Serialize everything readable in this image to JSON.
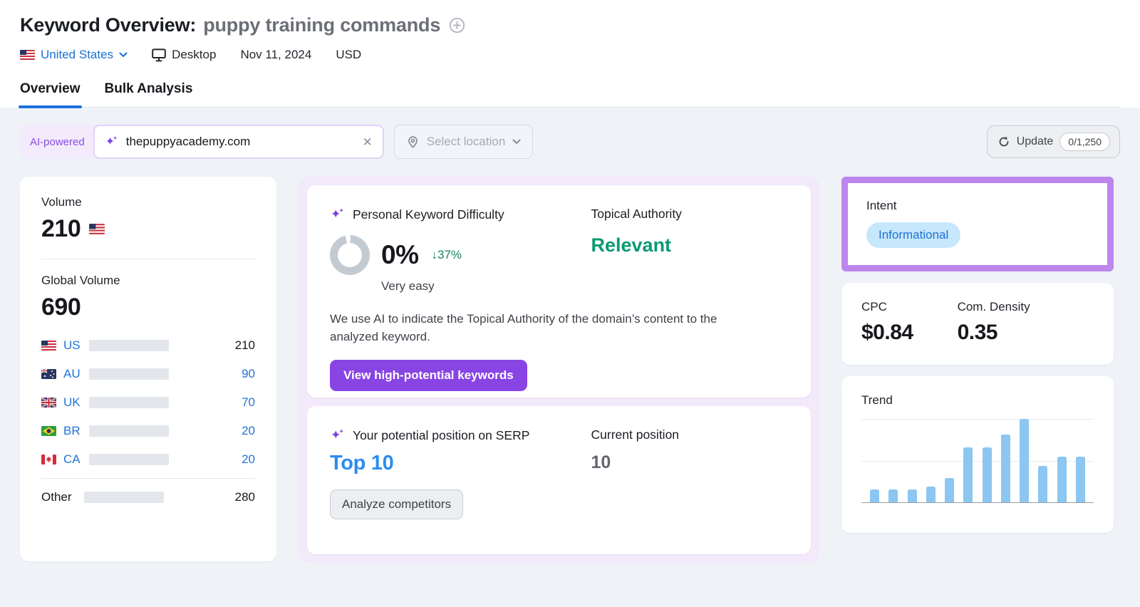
{
  "header": {
    "title": "Keyword Overview:",
    "keyword": "puppy training commands",
    "database": {
      "country": "United States",
      "device": "Desktop",
      "date": "Nov 11, 2024",
      "currency": "USD"
    },
    "tabs": [
      {
        "label": "Overview",
        "active": true
      },
      {
        "label": "Bulk Analysis",
        "active": false
      }
    ]
  },
  "toolbar": {
    "ai_badge": "AI-powered",
    "domain_input": {
      "value": "thepuppyacademy.com"
    },
    "location_select": {
      "placeholder": "Select location"
    },
    "update": {
      "label": "Update",
      "counter": "0/1,250"
    }
  },
  "volume_card": {
    "volume_label": "Volume",
    "volume": "210",
    "global_label": "Global Volume",
    "global_volume": "690",
    "global_value": 690,
    "countries": [
      {
        "code": "US",
        "value": 210,
        "display": "210"
      },
      {
        "code": "AU",
        "value": 90,
        "display": "90"
      },
      {
        "code": "UK",
        "value": 70,
        "display": "70"
      },
      {
        "code": "BR",
        "value": 20,
        "display": "20"
      },
      {
        "code": "CA",
        "value": 20,
        "display": "20"
      }
    ],
    "other": {
      "label": "Other",
      "value": 280,
      "display": "280"
    }
  },
  "pkd_card": {
    "title": "Personal Keyword Difficulty",
    "value": "0%",
    "delta": "↓37%",
    "level": "Very easy",
    "topical_authority_label": "Topical Authority",
    "topical_authority_value": "Relevant",
    "description": "We use AI to indicate the Topical Authority of the domain’s content to the analyzed keyword.",
    "cta": "View high-potential keywords"
  },
  "serp_card": {
    "title": "Your potential position on SERP",
    "potential": "Top 10",
    "current_label": "Current position",
    "current": "10",
    "cta": "Analyze competitors"
  },
  "intent_card": {
    "label": "Intent",
    "badge": "Informational"
  },
  "metrics_card": {
    "cpc_label": "CPC",
    "cpc": "$0.84",
    "density_label": "Com. Density",
    "density": "0.35"
  },
  "trend_card": {
    "label": "Trend",
    "chart_data": {
      "type": "bar",
      "values": [
        0.15,
        0.15,
        0.15,
        0.19,
        0.29,
        0.66,
        0.66,
        0.81,
        1.0,
        0.44,
        0.55,
        0.55
      ],
      "title": "Trend",
      "xlabel": "",
      "ylabel": "",
      "ylim": [
        0,
        1
      ],
      "gridlines": [
        1.0,
        0.5
      ],
      "legend": false
    }
  },
  "colors": {
    "link_blue": "#1B70D3",
    "tab_underline": "#1C73DC",
    "bar_primary_blue": "#0B72D8",
    "bar_light_blue": "#41BCF8",
    "trend_bar_blue": "#8CC6F1",
    "purple_cta": "#8845E4",
    "purple_highlight": "#BC86EC",
    "ai_pill_bg": "#F3EAFC",
    "ai_pill_text": "#8A4BE0",
    "green_positive": "#15865C",
    "green_relevant": "#0A9A73",
    "top10_blue": "#2B8CF0",
    "intent_badge_bg": "#C7E7FD",
    "intent_badge_text": "#1F72D0",
    "page_bg": "#EFF2F6"
  }
}
